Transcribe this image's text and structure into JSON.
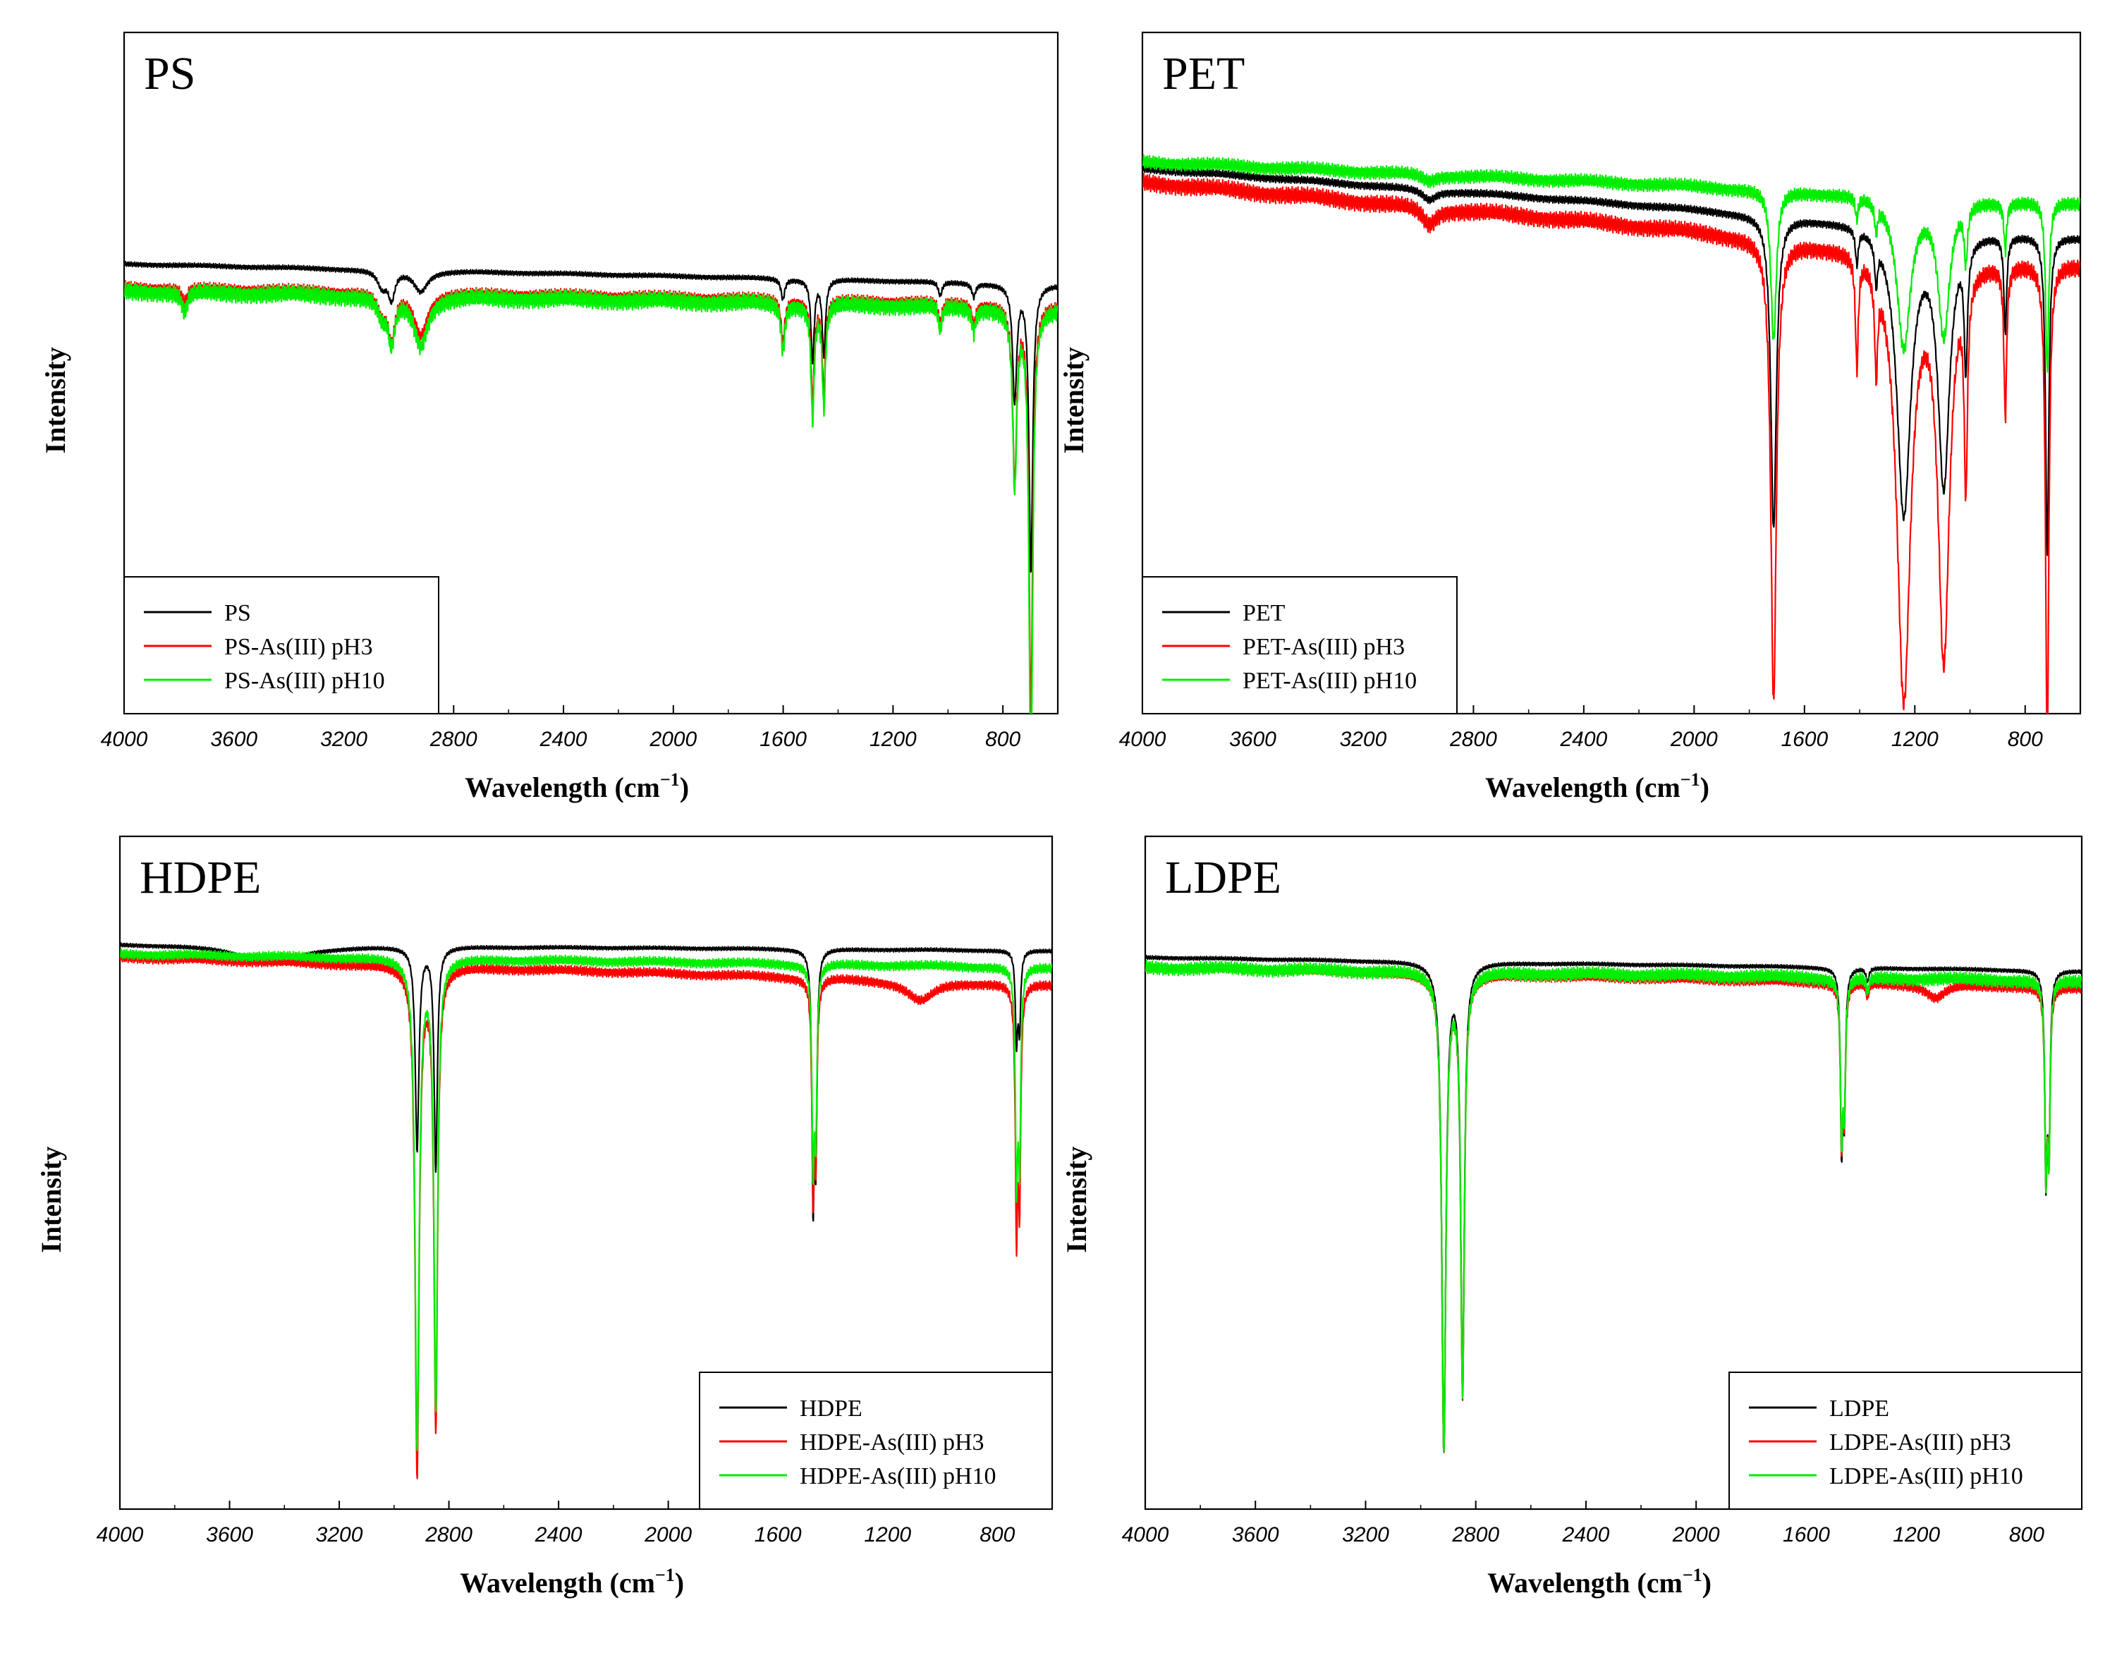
{
  "colors": {
    "neat": "#000000",
    "ph3": "#ff0000",
    "ph10": "#00ee00"
  },
  "chart_data": [
    {
      "type": "line",
      "title": "PS",
      "xlabel": "Wavelength (cm",
      "xlabel_sup": "−1",
      "xlabel_close": ")",
      "ylabel": "Intensity",
      "xlim": [
        4000,
        600
      ],
      "ylim": [
        0,
        100
      ],
      "x_ticks": [
        "4000",
        "3600",
        "3200",
        "2800",
        "2400",
        "2000",
        "1600",
        "1200",
        "800"
      ],
      "legend_position": "bottom-left",
      "series": [
        {
          "name": "PS",
          "baseline": 66,
          "slope": -3,
          "ripple": 0.25,
          "peaks": [
            [
              3060,
              2.5,
              20
            ],
            [
              3026,
              4,
              14
            ],
            [
              2920,
              3,
              30
            ],
            [
              1601,
              3,
              8
            ],
            [
              1493,
              12,
              7
            ],
            [
              1452,
              11,
              7
            ],
            [
              1028,
              2,
              8
            ],
            [
              906,
              2,
              8
            ],
            [
              757,
              17,
              9
            ],
            [
              698,
              42,
              8
            ]
          ]
        },
        {
          "name": "PS-As(III) pH3",
          "baseline": 62.5,
          "slope": -2.5,
          "ripple": 0.7,
          "peaks": [
            [
              3780,
              2,
              12
            ],
            [
              3060,
              3,
              20
            ],
            [
              3026,
              6.5,
              14
            ],
            [
              2920,
              6,
              30
            ],
            [
              1601,
              6,
              8
            ],
            [
              1493,
              15,
              7
            ],
            [
              1452,
              13,
              7
            ],
            [
              1028,
              3,
              8
            ],
            [
              906,
              3,
              8
            ],
            [
              757,
              25,
              9
            ],
            [
              698,
              60,
              8
            ]
          ]
        },
        {
          "name": "PS-As(III) pH10",
          "baseline": 62,
          "slope": -2.5,
          "ripple": 0.9,
          "peaks": [
            [
              3780,
              3,
              12
            ],
            [
              3060,
              3,
              20
            ],
            [
              3026,
              6.5,
              14
            ],
            [
              2920,
              7,
              30
            ],
            [
              1601,
              7,
              8
            ],
            [
              1493,
              17,
              7
            ],
            [
              1452,
              15,
              7
            ],
            [
              1028,
              3.5,
              8
            ],
            [
              906,
              3.5,
              8
            ],
            [
              757,
              26,
              9
            ],
            [
              698,
              70,
              8
            ]
          ]
        }
      ]
    },
    {
      "type": "line",
      "title": "PET",
      "xlabel": "Wavelength (cm",
      "xlabel_sup": "−1",
      "xlabel_close": ")",
      "ylabel": "Intensity",
      "xlim": [
        4000,
        600
      ],
      "ylim": [
        0,
        100
      ],
      "x_ticks": [
        "4000",
        "3600",
        "3200",
        "2800",
        "2400",
        "2000",
        "1600",
        "1200",
        "800"
      ],
      "legend_position": "bottom-left",
      "series": [
        {
          "name": "PET",
          "baseline": 80,
          "slope": -10,
          "ripple": 0.4,
          "peaks": [
            [
              2960,
              1.5,
              30
            ],
            [
              1712,
              46,
              12
            ],
            [
              1410,
              5,
              6
            ],
            [
              1340,
              6,
              6
            ],
            [
              1240,
              42,
              30
            ],
            [
              1095,
              37,
              25
            ],
            [
              1015,
              18,
              7
            ],
            [
              872,
              14,
              6
            ],
            [
              720,
              47,
              7
            ]
          ]
        },
        {
          "name": "PET-As(III) pH3",
          "baseline": 78,
          "slope": -12,
          "ripple": 0.9,
          "peaks": [
            [
              2960,
              2.5,
              30
            ],
            [
              1712,
              68,
              12
            ],
            [
              1410,
              16,
              6
            ],
            [
              1340,
              14,
              6
            ],
            [
              1240,
              65,
              30
            ],
            [
              1095,
              58,
              25
            ],
            [
              1015,
              30,
              7
            ],
            [
              872,
              22,
              6
            ],
            [
              720,
              72,
              7
            ]
          ]
        },
        {
          "name": "PET-As(III) pH10",
          "baseline": 81,
          "slope": -6,
          "ripple": 0.7,
          "peaks": [
            [
              2960,
              1,
              30
            ],
            [
              1712,
              22,
              12
            ],
            [
              1410,
              3,
              6
            ],
            [
              1340,
              4,
              6
            ],
            [
              1240,
              22,
              30
            ],
            [
              1095,
              20,
              25
            ],
            [
              1015,
              8,
              7
            ],
            [
              872,
              7,
              6
            ],
            [
              720,
              25,
              7
            ]
          ]
        }
      ]
    },
    {
      "type": "line",
      "title": "HDPE",
      "xlabel": "Wavelength (cm",
      "xlabel_sup": "−1",
      "xlabel_close": ")",
      "ylabel": "Intensity",
      "xlim": [
        4000,
        600
      ],
      "ylim": [
        0,
        100
      ],
      "x_ticks": [
        "4000",
        "3600",
        "3200",
        "2800",
        "2400",
        "2000",
        "1600",
        "1200",
        "800"
      ],
      "legend_position": "bottom-right",
      "series": [
        {
          "name": "HDPE",
          "baseline": 84,
          "slope": -1,
          "ripple": 0.2,
          "peaks": [
            [
              3450,
              2.5,
              140
            ],
            [
              2916,
              30,
              8
            ],
            [
              2848,
              33,
              7
            ],
            [
              1472,
              35,
              5
            ],
            [
              1462,
              28,
              5
            ],
            [
              730,
              13,
              5
            ],
            [
              719,
              11,
              5
            ]
          ]
        },
        {
          "name": "HDPE-As(III) pH3",
          "baseline": 82,
          "slope": -4,
          "ripple": 0.5,
          "peaks": [
            [
              2916,
              75,
              9
            ],
            [
              2848,
              68,
              8
            ],
            [
              1472,
              30,
              5
            ],
            [
              1462,
              24,
              5
            ],
            [
              1080,
              3,
              60
            ],
            [
              730,
              35,
              5
            ],
            [
              719,
              30,
              5
            ]
          ]
        },
        {
          "name": "HDPE-As(III) pH10",
          "baseline": 82.5,
          "slope": -2,
          "ripple": 0.5,
          "peaks": [
            [
              2916,
              72,
              9
            ],
            [
              2848,
              66,
              8
            ],
            [
              1472,
              28,
              5
            ],
            [
              1462,
              23,
              5
            ],
            [
              730,
              30,
              5
            ],
            [
              719,
              27,
              5
            ]
          ]
        }
      ]
    },
    {
      "type": "line",
      "title": "LDPE",
      "xlabel": "Wavelength (cm",
      "xlabel_sup": "−1",
      "xlabel_close": ")",
      "ylabel": "Intensity",
      "xlim": [
        4000,
        600
      ],
      "ylim": [
        0,
        100
      ],
      "x_ticks": [
        "4000",
        "3600",
        "3200",
        "2800",
        "2400",
        "2000",
        "1600",
        "1200",
        "800"
      ],
      "legend_position": "bottom-right",
      "series": [
        {
          "name": "LDPE",
          "baseline": 82,
          "slope": -2,
          "ripple": 0.2,
          "peaks": [
            [
              2916,
              72,
              9
            ],
            [
              2848,
              63,
              8
            ],
            [
              1472,
              25,
              5
            ],
            [
              1462,
              20,
              5
            ],
            [
              1378,
              2,
              6
            ],
            [
              730,
              29,
              5
            ],
            [
              719,
              25,
              5
            ]
          ]
        },
        {
          "name": "LDPE-As(III) pH3",
          "baseline": 80.5,
          "slope": -3,
          "ripple": 0.5,
          "peaks": [
            [
              2916,
              70,
              9
            ],
            [
              2848,
              62,
              8
            ],
            [
              1472,
              22,
              5
            ],
            [
              1462,
              18,
              5
            ],
            [
              1378,
              2,
              6
            ],
            [
              1130,
              2,
              40
            ],
            [
              730,
              26,
              5
            ],
            [
              719,
              23,
              5
            ]
          ]
        },
        {
          "name": "LDPE-As(III) pH10",
          "baseline": 80.5,
          "slope": -2,
          "ripple": 0.7,
          "peaks": [
            [
              2916,
              70,
              9
            ],
            [
              2848,
              62,
              8
            ],
            [
              1472,
              22,
              5
            ],
            [
              1462,
              18,
              5
            ],
            [
              1378,
              2,
              6
            ],
            [
              730,
              27,
              5
            ],
            [
              719,
              24,
              5
            ]
          ]
        }
      ]
    }
  ]
}
